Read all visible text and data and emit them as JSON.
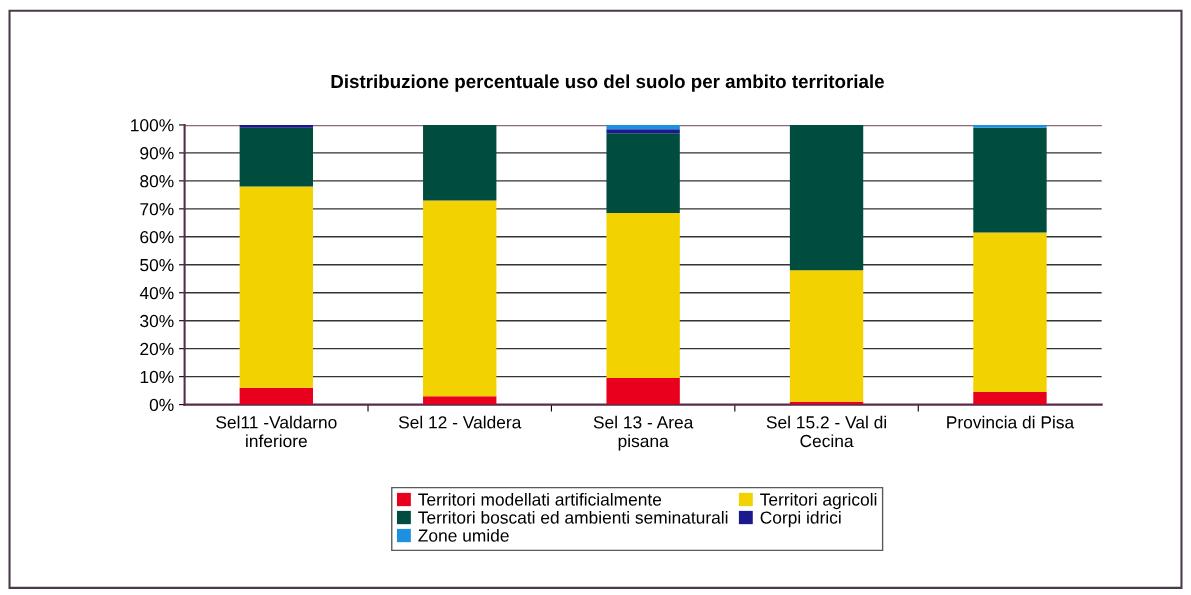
{
  "chart_data": {
    "type": "bar",
    "title": "Distribuzione percentuale uso del suolo per ambito territoriale",
    "categories": [
      "Sel11 -Valdarno\ninferiore",
      "Sel 12 - Valdera",
      "Sel 13 - Area\npisana",
      "Sel 15.2 - Val di\nCecina",
      "Provincia di Pisa"
    ],
    "stacked": true,
    "series": [
      {
        "name": "Territori modellati artificialmente",
        "color": "#e8001c",
        "values": [
          6,
          3,
          9.5,
          1,
          4.5
        ]
      },
      {
        "name": "Territori agricoli",
        "color": "#f2d200",
        "values": [
          72,
          70,
          59,
          47,
          57
        ]
      },
      {
        "name": "Territori boscati ed ambienti seminaturali",
        "color": "#004d40",
        "values": [
          21,
          27,
          28.5,
          52,
          37.5
        ]
      },
      {
        "name": "Corpi idrici",
        "color": "#1a1a8c",
        "values": [
          1,
          0,
          1.5,
          0,
          0
        ]
      },
      {
        "name": "Zone umide",
        "color": "#1e90e0",
        "values": [
          0,
          0,
          1.5,
          0,
          1
        ]
      }
    ],
    "ylim": [
      0,
      100
    ],
    "yticks": [
      {
        "value": 0,
        "label": "0%"
      },
      {
        "value": 10,
        "label": "10%"
      },
      {
        "value": 20,
        "label": "20%"
      },
      {
        "value": 30,
        "label": "30%"
      },
      {
        "value": 40,
        "label": "40%"
      },
      {
        "value": 50,
        "label": "50%"
      },
      {
        "value": 60,
        "label": "60%"
      },
      {
        "value": 70,
        "label": "70%"
      },
      {
        "value": 80,
        "label": "80%"
      },
      {
        "value": 90,
        "label": "90%"
      },
      {
        "value": 100,
        "label": "100%"
      }
    ],
    "grid": "y",
    "legend": "bottom"
  }
}
